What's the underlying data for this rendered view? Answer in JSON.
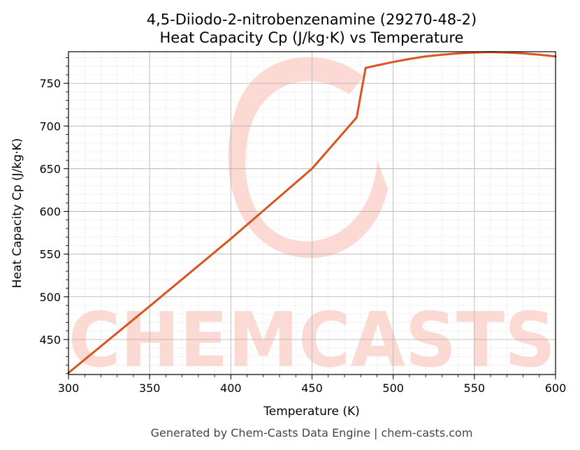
{
  "chart_data": {
    "type": "line",
    "title_lines": [
      "4,5-Diiodo-2-nitrobenzenamine (29270-48-2)",
      "Heat Capacity Cp (J/kg·K) vs Temperature"
    ],
    "xlabel": "Temperature (K)",
    "ylabel": "Heat Capacity Cp (J/kg·K)",
    "xlim": [
      300,
      600
    ],
    "ylim": [
      409,
      787
    ],
    "x_ticks": [
      300,
      350,
      400,
      450,
      500,
      550,
      600
    ],
    "y_ticks": [
      450,
      500,
      550,
      600,
      650,
      700,
      750
    ],
    "grid": true,
    "minor_grid": true,
    "series": [
      {
        "color": "#d9541e",
        "points": [
          [
            300,
            411
          ],
          [
            350,
            489
          ],
          [
            400,
            568
          ],
          [
            450,
            650
          ],
          [
            477.5,
            710
          ],
          [
            483,
            768
          ],
          [
            490,
            771
          ],
          [
            500,
            775
          ],
          [
            510,
            778.5
          ],
          [
            520,
            781.5
          ],
          [
            530,
            783.5
          ],
          [
            540,
            785
          ],
          [
            550,
            786
          ],
          [
            560,
            786.5
          ],
          [
            570,
            786
          ],
          [
            580,
            785
          ],
          [
            590,
            783.5
          ],
          [
            600,
            781.5
          ]
        ]
      }
    ]
  },
  "watermark": {
    "text": "CHEMCASTS",
    "color": "#fcd9d3"
  },
  "footer": "Generated by Chem-Casts Data Engine | chem-casts.com"
}
